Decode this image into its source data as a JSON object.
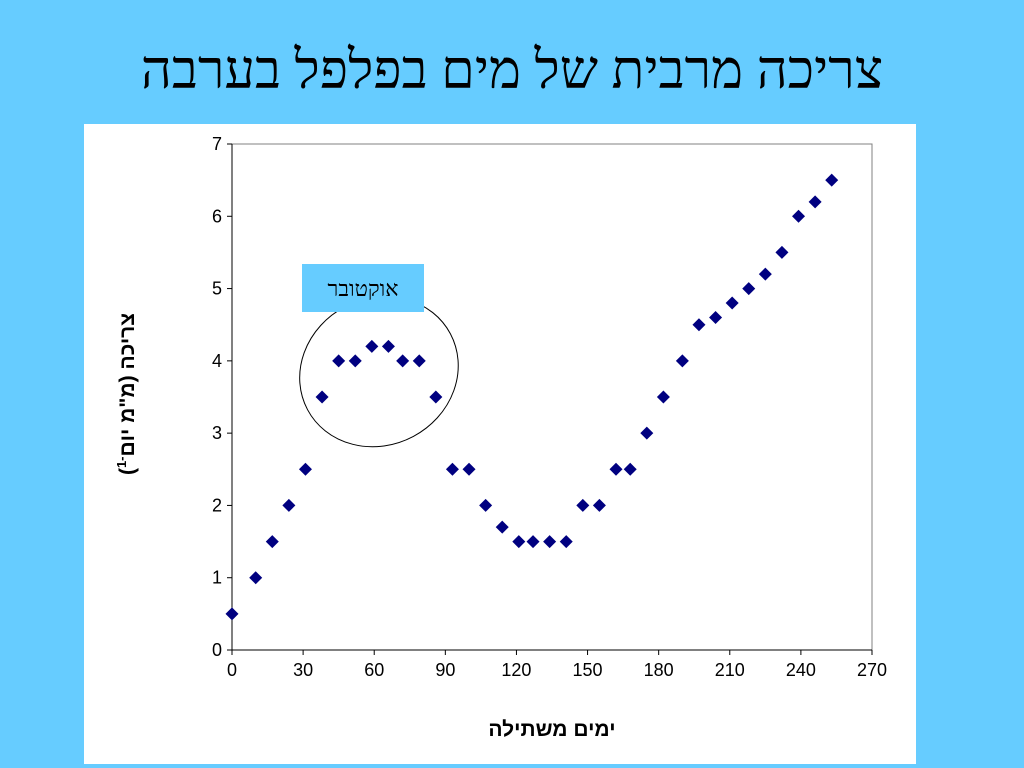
{
  "slide": {
    "title": "צריכה מרבית של מים בפלפל בערבה"
  },
  "chart_data": {
    "type": "scatter",
    "xlabel": "ימים משתילה",
    "ylabel": "צריכה (מ\"מ יום",
    "ylabel_superscript": "-1",
    "ylabel_close": ")",
    "xlim": [
      0,
      270
    ],
    "ylim": [
      0,
      7
    ],
    "xticks": [
      0,
      30,
      60,
      90,
      120,
      150,
      180,
      210,
      240,
      270
    ],
    "yticks": [
      0,
      1,
      2,
      3,
      4,
      5,
      6,
      7
    ],
    "marker": "diamond",
    "marker_color": "#000080",
    "points": [
      {
        "x": 0,
        "y": 0.5
      },
      {
        "x": 10,
        "y": 1.0
      },
      {
        "x": 17,
        "y": 1.5
      },
      {
        "x": 24,
        "y": 2.0
      },
      {
        "x": 31,
        "y": 2.5
      },
      {
        "x": 38,
        "y": 3.5
      },
      {
        "x": 45,
        "y": 4.0
      },
      {
        "x": 52,
        "y": 4.0
      },
      {
        "x": 59,
        "y": 4.2
      },
      {
        "x": 66,
        "y": 4.2
      },
      {
        "x": 72,
        "y": 4.0
      },
      {
        "x": 79,
        "y": 4.0
      },
      {
        "x": 86,
        "y": 3.5
      },
      {
        "x": 93,
        "y": 2.5
      },
      {
        "x": 100,
        "y": 2.5
      },
      {
        "x": 107,
        "y": 2.0
      },
      {
        "x": 114,
        "y": 1.7
      },
      {
        "x": 121,
        "y": 1.5
      },
      {
        "x": 127,
        "y": 1.5
      },
      {
        "x": 134,
        "y": 1.5
      },
      {
        "x": 141,
        "y": 1.5
      },
      {
        "x": 148,
        "y": 2.0
      },
      {
        "x": 155,
        "y": 2.0
      },
      {
        "x": 162,
        "y": 2.5
      },
      {
        "x": 168,
        "y": 2.5
      },
      {
        "x": 175,
        "y": 3.0
      },
      {
        "x": 182,
        "y": 3.5
      },
      {
        "x": 190,
        "y": 4.0
      },
      {
        "x": 197,
        "y": 4.5
      },
      {
        "x": 204,
        "y": 4.6
      },
      {
        "x": 211,
        "y": 4.8
      },
      {
        "x": 218,
        "y": 5.0
      },
      {
        "x": 225,
        "y": 5.2
      },
      {
        "x": 232,
        "y": 5.5
      },
      {
        "x": 239,
        "y": 6.0
      },
      {
        "x": 246,
        "y": 6.2
      },
      {
        "x": 253,
        "y": 6.5
      }
    ],
    "annotation": {
      "label": "אוקטובר",
      "label_bg": "#66ccff",
      "highlight": {
        "x_range": [
          38,
          86
        ],
        "y_range": [
          3.5,
          4.2
        ]
      }
    }
  }
}
